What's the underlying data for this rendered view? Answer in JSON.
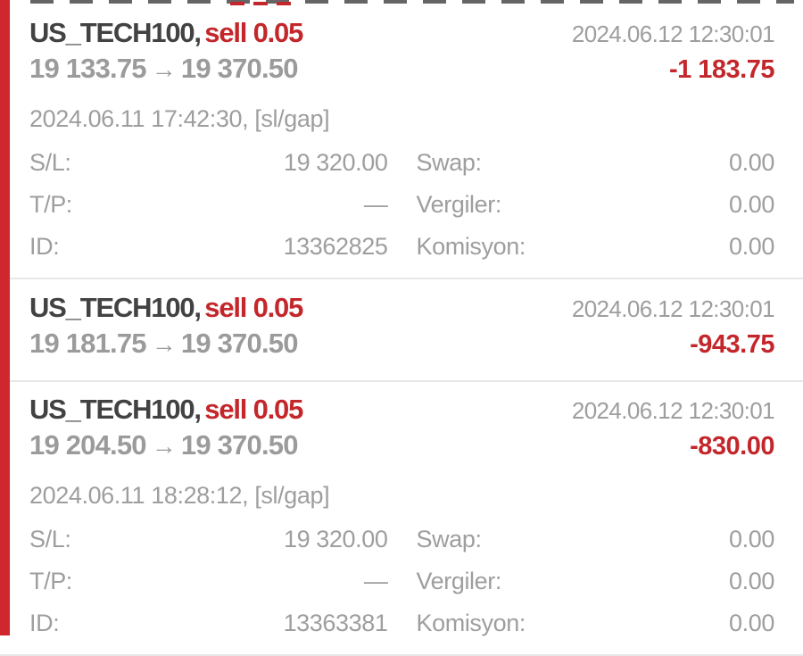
{
  "ui": {
    "arrow": "→",
    "accent_red": "#d0262e",
    "text_red": "#c3272b",
    "text_dark": "#424242",
    "text_gray": "#9e9e9e"
  },
  "labels": {
    "sl": "S/L:",
    "tp": "T/P:",
    "id": "ID:",
    "swap": "Swap:",
    "taxes": "Vergiler:",
    "commission": "Komisyon:"
  },
  "trades": [
    {
      "symbol": "US_TECH100,",
      "side": "sell 0.05",
      "close_time": "2024.06.12 12:30:01",
      "open_price": "19 133.75",
      "close_price": "19 370.50",
      "profit": "-1 183.75",
      "open_time": "2024.06.11 17:42:30, [sl/gap]",
      "sl": "19 320.00",
      "tp": "—",
      "id": "13362825",
      "swap": "0.00",
      "taxes": "0.00",
      "commission": "0.00"
    },
    {
      "symbol": "US_TECH100,",
      "side": "sell 0.05",
      "close_time": "2024.06.12 12:30:01",
      "open_price": "19 181.75",
      "close_price": "19 370.50",
      "profit": "-943.75"
    },
    {
      "symbol": "US_TECH100,",
      "side": "sell 0.05",
      "close_time": "2024.06.12 12:30:01",
      "open_price": "19 204.50",
      "close_price": "19 370.50",
      "profit": "-830.00",
      "open_time": "2024.06.11 18:28:12, [sl/gap]",
      "sl": "19 320.00",
      "tp": "—",
      "id": "13363381",
      "swap": "0.00",
      "taxes": "0.00",
      "commission": "0.00"
    }
  ]
}
